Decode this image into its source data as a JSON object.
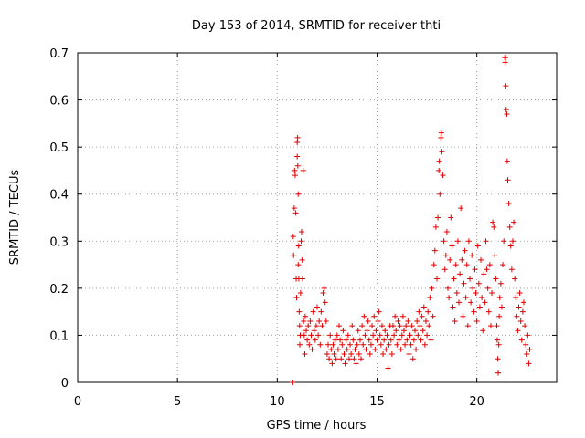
{
  "chart_data": {
    "type": "scatter",
    "title": "Day 153 of 2014, SRMTID for receiver thti",
    "xlabel": "GPS time / hours",
    "ylabel": "SRMTID / TECUs",
    "xlim": [
      0,
      24
    ],
    "ylim": [
      0,
      0.7
    ],
    "xticks": [
      0,
      5,
      10,
      15,
      20
    ],
    "xtick_labels": [
      "0",
      "5",
      "10",
      "15",
      "20"
    ],
    "yticks": [
      0,
      0.1,
      0.2,
      0.3,
      0.4,
      0.5,
      0.6,
      0.7
    ],
    "ytick_labels": [
      "0",
      "0.1",
      "0.2",
      "0.3",
      "0.4",
      "0.5",
      "0.6",
      "0.7"
    ],
    "grid": true,
    "marker": "plus",
    "marker_color": "#e00000",
    "series": [
      {
        "name": "thti",
        "points": [
          [
            10.75,
            0.0
          ],
          [
            10.78,
            0.0
          ],
          [
            10.8,
            0.31
          ],
          [
            10.82,
            0.27
          ],
          [
            10.85,
            0.37
          ],
          [
            10.87,
            0.45
          ],
          [
            10.9,
            0.44
          ],
          [
            10.93,
            0.36
          ],
          [
            10.95,
            0.22
          ],
          [
            10.97,
            0.18
          ],
          [
            11.0,
            0.48
          ],
          [
            11.0,
            0.51
          ],
          [
            11.02,
            0.52
          ],
          [
            11.03,
            0.46
          ],
          [
            11.05,
            0.4
          ],
          [
            11.05,
            0.25
          ],
          [
            11.07,
            0.29
          ],
          [
            11.08,
            0.22
          ],
          [
            11.1,
            0.15
          ],
          [
            11.12,
            0.12
          ],
          [
            11.13,
            0.08
          ],
          [
            11.15,
            0.1
          ],
          [
            11.17,
            0.19
          ],
          [
            11.2,
            0.3
          ],
          [
            11.22,
            0.32
          ],
          [
            11.25,
            0.26
          ],
          [
            11.27,
            0.22
          ],
          [
            11.3,
            0.45
          ],
          [
            11.32,
            0.13
          ],
          [
            11.35,
            0.1
          ],
          [
            11.38,
            0.06
          ],
          [
            11.4,
            0.14
          ],
          [
            11.45,
            0.11
          ],
          [
            11.5,
            0.09
          ],
          [
            11.55,
            0.12
          ],
          [
            11.6,
            0.08
          ],
          [
            11.65,
            0.13
          ],
          [
            11.7,
            0.1
          ],
          [
            11.75,
            0.07
          ],
          [
            11.8,
            0.15
          ],
          [
            11.85,
            0.11
          ],
          [
            11.9,
            0.09
          ],
          [
            11.95,
            0.12
          ],
          [
            12.0,
            0.16
          ],
          [
            12.05,
            0.1
          ],
          [
            12.1,
            0.13
          ],
          [
            12.15,
            0.08
          ],
          [
            12.2,
            0.15
          ],
          [
            12.25,
            0.12
          ],
          [
            12.3,
            0.19
          ],
          [
            12.35,
            0.2
          ],
          [
            12.4,
            0.17
          ],
          [
            12.45,
            0.13
          ],
          [
            12.5,
            0.06
          ],
          [
            12.55,
            0.08
          ],
          [
            12.6,
            0.05
          ],
          [
            12.65,
            0.1
          ],
          [
            12.7,
            0.07
          ],
          [
            12.75,
            0.04
          ],
          [
            12.8,
            0.08
          ],
          [
            12.85,
            0.06
          ],
          [
            12.9,
            0.09
          ],
          [
            12.95,
            0.05
          ],
          [
            13.0,
            0.1
          ],
          [
            13.05,
            0.07
          ],
          [
            13.1,
            0.12
          ],
          [
            13.15,
            0.09
          ],
          [
            13.2,
            0.05
          ],
          [
            13.25,
            0.08
          ],
          [
            13.3,
            0.11
          ],
          [
            13.35,
            0.06
          ],
          [
            13.4,
            0.04
          ],
          [
            13.45,
            0.09
          ],
          [
            13.5,
            0.07
          ],
          [
            13.55,
            0.1
          ],
          [
            13.6,
            0.05
          ],
          [
            13.65,
            0.08
          ],
          [
            13.7,
            0.06
          ],
          [
            13.75,
            0.12
          ],
          [
            13.8,
            0.09
          ],
          [
            13.85,
            0.05
          ],
          [
            13.9,
            0.07
          ],
          [
            13.95,
            0.04
          ],
          [
            14.0,
            0.08
          ],
          [
            14.05,
            0.11
          ],
          [
            14.1,
            0.06
          ],
          [
            14.15,
            0.09
          ],
          [
            14.2,
            0.05
          ],
          [
            14.25,
            0.12
          ],
          [
            14.3,
            0.08
          ],
          [
            14.35,
            0.14
          ],
          [
            14.4,
            0.1
          ],
          [
            14.45,
            0.07
          ],
          [
            14.5,
            0.11
          ],
          [
            14.55,
            0.13
          ],
          [
            14.6,
            0.09
          ],
          [
            14.65,
            0.06
          ],
          [
            14.7,
            0.08
          ],
          [
            14.75,
            0.12
          ],
          [
            14.8,
            0.1
          ],
          [
            14.85,
            0.14
          ],
          [
            14.9,
            0.07
          ],
          [
            14.95,
            0.11
          ],
          [
            15.0,
            0.09
          ],
          [
            15.05,
            0.13
          ],
          [
            15.1,
            0.15
          ],
          [
            15.15,
            0.1
          ],
          [
            15.2,
            0.08
          ],
          [
            15.25,
            0.12
          ],
          [
            15.3,
            0.06
          ],
          [
            15.35,
            0.09
          ],
          [
            15.4,
            0.11
          ],
          [
            15.45,
            0.07
          ],
          [
            15.5,
            0.1
          ],
          [
            15.55,
            0.03
          ],
          [
            15.6,
            0.08
          ],
          [
            15.65,
            0.12
          ],
          [
            15.7,
            0.09
          ],
          [
            15.75,
            0.06
          ],
          [
            15.8,
            0.12
          ],
          [
            15.85,
            0.1
          ],
          [
            15.9,
            0.14
          ],
          [
            15.95,
            0.11
          ],
          [
            16.0,
            0.08
          ],
          [
            16.05,
            0.13
          ],
          [
            16.1,
            0.09
          ],
          [
            16.15,
            0.12
          ],
          [
            16.2,
            0.07
          ],
          [
            16.25,
            0.1
          ],
          [
            16.3,
            0.14
          ],
          [
            16.35,
            0.11
          ],
          [
            16.4,
            0.08
          ],
          [
            16.45,
            0.12
          ],
          [
            16.5,
            0.09
          ],
          [
            16.55,
            0.13
          ],
          [
            16.6,
            0.06
          ],
          [
            16.65,
            0.1
          ],
          [
            16.7,
            0.08
          ],
          [
            16.75,
            0.12
          ],
          [
            16.8,
            0.05
          ],
          [
            16.85,
            0.09
          ],
          [
            16.9,
            0.11
          ],
          [
            16.95,
            0.07
          ],
          [
            17.0,
            0.13
          ],
          [
            17.05,
            0.1
          ],
          [
            17.1,
            0.15
          ],
          [
            17.15,
            0.12
          ],
          [
            17.2,
            0.09
          ],
          [
            17.25,
            0.14
          ],
          [
            17.3,
            0.11
          ],
          [
            17.35,
            0.16
          ],
          [
            17.4,
            0.08
          ],
          [
            17.45,
            0.13
          ],
          [
            17.5,
            0.1
          ],
          [
            17.55,
            0.15
          ],
          [
            17.6,
            0.12
          ],
          [
            17.65,
            0.18
          ],
          [
            17.7,
            0.09
          ],
          [
            17.75,
            0.2
          ],
          [
            17.8,
            0.14
          ],
          [
            17.85,
            0.25
          ],
          [
            17.9,
            0.28
          ],
          [
            17.95,
            0.33
          ],
          [
            18.0,
            0.22
          ],
          [
            18.05,
            0.35
          ],
          [
            18.1,
            0.45
          ],
          [
            18.12,
            0.47
          ],
          [
            18.15,
            0.4
          ],
          [
            18.2,
            0.52
          ],
          [
            18.22,
            0.53
          ],
          [
            18.25,
            0.49
          ],
          [
            18.3,
            0.44
          ],
          [
            18.35,
            0.3
          ],
          [
            18.4,
            0.24
          ],
          [
            18.45,
            0.27
          ],
          [
            18.5,
            0.32
          ],
          [
            18.55,
            0.2
          ],
          [
            18.6,
            0.18
          ],
          [
            18.65,
            0.26
          ],
          [
            18.7,
            0.35
          ],
          [
            18.75,
            0.29
          ],
          [
            18.8,
            0.16
          ],
          [
            18.85,
            0.22
          ],
          [
            18.9,
            0.13
          ],
          [
            18.95,
            0.25
          ],
          [
            19.0,
            0.19
          ],
          [
            19.05,
            0.3
          ],
          [
            19.1,
            0.17
          ],
          [
            19.15,
            0.23
          ],
          [
            19.2,
            0.37
          ],
          [
            19.25,
            0.26
          ],
          [
            19.3,
            0.14
          ],
          [
            19.35,
            0.21
          ],
          [
            19.4,
            0.28
          ],
          [
            19.45,
            0.18
          ],
          [
            19.5,
            0.25
          ],
          [
            19.55,
            0.12
          ],
          [
            19.6,
            0.3
          ],
          [
            19.65,
            0.22
          ],
          [
            19.7,
            0.17
          ],
          [
            19.75,
            0.27
          ],
          [
            19.8,
            0.2
          ],
          [
            19.85,
            0.15
          ],
          [
            19.9,
            0.24
          ],
          [
            19.95,
            0.19
          ],
          [
            20.0,
            0.13
          ],
          [
            20.05,
            0.29
          ],
          [
            20.1,
            0.21
          ],
          [
            20.15,
            0.16
          ],
          [
            20.2,
            0.26
          ],
          [
            20.25,
            0.18
          ],
          [
            20.3,
            0.11
          ],
          [
            20.35,
            0.23
          ],
          [
            20.4,
            0.17
          ],
          [
            20.45,
            0.3
          ],
          [
            20.5,
            0.24
          ],
          [
            20.55,
            0.2
          ],
          [
            20.6,
            0.15
          ],
          [
            20.65,
            0.25
          ],
          [
            20.7,
            0.12
          ],
          [
            20.75,
            0.19
          ],
          [
            20.8,
            0.34
          ],
          [
            20.85,
            0.33
          ],
          [
            20.9,
            0.27
          ],
          [
            20.95,
            0.22
          ],
          [
            21.0,
            0.12
          ],
          [
            21.02,
            0.09
          ],
          [
            21.05,
            0.05
          ],
          [
            21.07,
            0.02
          ],
          [
            21.1,
            0.08
          ],
          [
            21.12,
            0.14
          ],
          [
            21.15,
            0.18
          ],
          [
            21.2,
            0.21
          ],
          [
            21.25,
            0.16
          ],
          [
            21.3,
            0.25
          ],
          [
            21.35,
            0.3
          ],
          [
            21.4,
            0.69
          ],
          [
            21.42,
            0.68
          ],
          [
            21.44,
            0.69
          ],
          [
            21.45,
            0.63
          ],
          [
            21.47,
            0.58
          ],
          [
            21.5,
            0.57
          ],
          [
            21.52,
            0.47
          ],
          [
            21.55,
            0.43
          ],
          [
            21.6,
            0.38
          ],
          [
            21.65,
            0.33
          ],
          [
            21.7,
            0.29
          ],
          [
            21.75,
            0.24
          ],
          [
            21.8,
            0.3
          ],
          [
            21.85,
            0.34
          ],
          [
            21.9,
            0.22
          ],
          [
            21.95,
            0.18
          ],
          [
            22.0,
            0.14
          ],
          [
            22.05,
            0.11
          ],
          [
            22.1,
            0.16
          ],
          [
            22.15,
            0.19
          ],
          [
            22.2,
            0.13
          ],
          [
            22.25,
            0.09
          ],
          [
            22.3,
            0.15
          ],
          [
            22.35,
            0.17
          ],
          [
            22.4,
            0.12
          ],
          [
            22.45,
            0.08
          ],
          [
            22.5,
            0.06
          ],
          [
            22.55,
            0.1
          ],
          [
            22.6,
            0.04
          ],
          [
            22.65,
            0.07
          ]
        ]
      }
    ]
  }
}
